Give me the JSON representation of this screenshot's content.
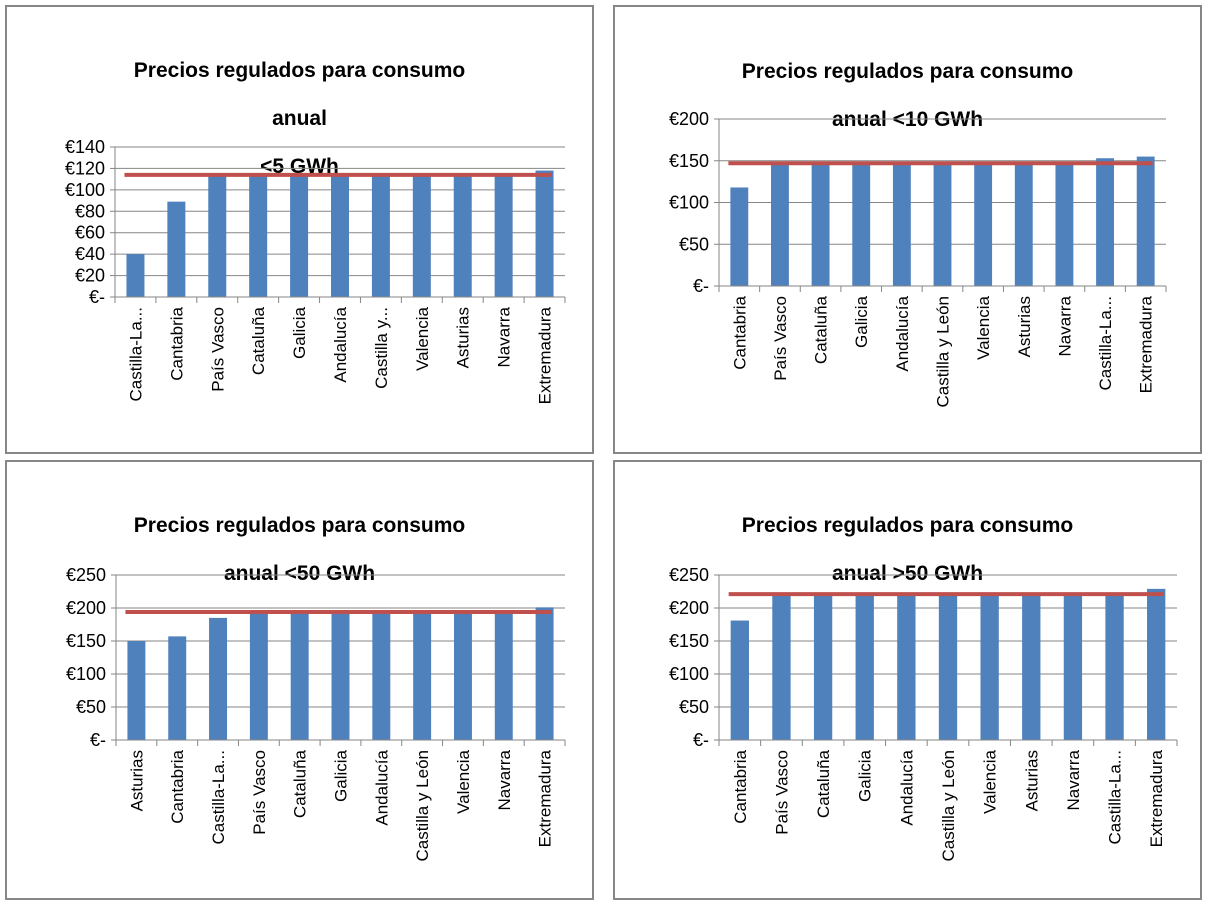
{
  "chart_data": [
    {
      "type": "bar",
      "title_lines": [
        "Precios regulados para consumo",
        "anual",
        "<5 GWh"
      ],
      "categories": [
        "Castilla-La...",
        "Cantabria",
        "País Vasco",
        "Cataluña",
        "Galicia",
        "Andalucía",
        "Castilla y...",
        "Valencia",
        "Asturias",
        "Navarra",
        "Extremadura"
      ],
      "values": [
        40,
        89,
        113,
        113,
        113,
        113,
        113,
        113,
        113,
        113,
        118
      ],
      "reference_line": 114,
      "ylim": [
        0,
        140
      ],
      "yticks": [
        "€-",
        "€20",
        "€40",
        "€60",
        "€80",
        "€100",
        "€120",
        "€140"
      ],
      "grid": true,
      "bar_color": "#4F81BD",
      "line_color": "#C0504D"
    },
    {
      "type": "bar",
      "title_lines": [
        "Precios regulados para consumo",
        "anual <10 GWh"
      ],
      "categories": [
        "Cantabria",
        "País Vasco",
        "Cataluña",
        "Galicia",
        "Andalucía",
        "Castilla y León",
        "Valencia",
        "Asturias",
        "Navarra",
        "Castilla-La...",
        "Extremadura"
      ],
      "values": [
        118,
        146,
        146,
        146,
        146,
        146,
        146,
        146,
        146,
        153,
        155
      ],
      "reference_line": 147,
      "ylim": [
        0,
        200
      ],
      "yticks": [
        "€-",
        "€50",
        "€100",
        "€150",
        "€200"
      ],
      "grid": true,
      "bar_color": "#4F81BD",
      "line_color": "#C0504D"
    },
    {
      "type": "bar",
      "title_lines": [
        "Precios regulados para consumo",
        "anual <50 GWh"
      ],
      "categories": [
        "Asturias",
        "Cantabria",
        "Castilla-La...",
        "País Vasco",
        "Cataluña",
        "Galicia",
        "Andalucía",
        "Castilla y León",
        "Valencia",
        "Navarra",
        "Extremadura"
      ],
      "values": [
        150,
        157,
        185,
        192,
        192,
        192,
        192,
        192,
        192,
        192,
        201
      ],
      "reference_line": 194,
      "ylim": [
        0,
        250
      ],
      "yticks": [
        "€-",
        "€50",
        "€100",
        "€150",
        "€200",
        "€250"
      ],
      "grid": true,
      "bar_color": "#4F81BD",
      "line_color": "#C0504D"
    },
    {
      "type": "bar",
      "title_lines": [
        "Precios regulados para consumo",
        "anual >50 GWh"
      ],
      "categories": [
        "Cantabria",
        "País Vasco",
        "Cataluña",
        "Galicia",
        "Andalucía",
        "Castilla y León",
        "Valencia",
        "Asturias",
        "Navarra",
        "Castilla-La...",
        "Extremadura"
      ],
      "values": [
        181,
        220,
        220,
        220,
        220,
        220,
        220,
        220,
        220,
        220,
        229
      ],
      "reference_line": 221,
      "ylim": [
        0,
        250
      ],
      "yticks": [
        "€-",
        "€50",
        "€100",
        "€150",
        "€200",
        "€250"
      ],
      "grid": true,
      "bar_color": "#4F81BD",
      "line_color": "#C0504D"
    }
  ]
}
